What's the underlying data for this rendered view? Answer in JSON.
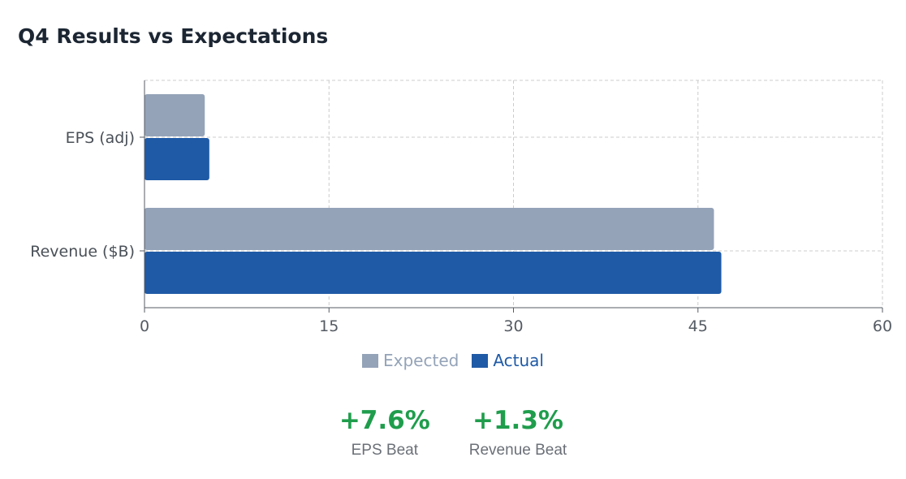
{
  "title": "Q4 Results vs Expectations",
  "chart_data": {
    "type": "bar",
    "orientation": "horizontal",
    "categories": [
      "EPS (adj)",
      "Revenue ($B)"
    ],
    "series": [
      {
        "name": "Expected",
        "color": "#94a3b8",
        "values": [
          4.9,
          46.3
        ]
      },
      {
        "name": "Actual",
        "color": "#1f5aa6",
        "values": [
          5.27,
          46.9
        ]
      }
    ],
    "xlim": [
      0,
      60
    ],
    "x_ticks": [
      "0",
      "15",
      "30",
      "45",
      "60"
    ],
    "grid": true,
    "legend_position": "bottom-center"
  },
  "legend": {
    "items": [
      {
        "label": "Expected",
        "color": "#94a3b8"
      },
      {
        "label": "Actual",
        "color": "#1f5aa6"
      }
    ]
  },
  "stats": [
    {
      "value": "+7.6%",
      "label": "EPS Beat"
    },
    {
      "value": "+1.3%",
      "label": "Revenue Beat"
    }
  ],
  "colors": {
    "positive": "#1f9d4c",
    "axis": "#555b63",
    "grid": "#cccccc"
  }
}
